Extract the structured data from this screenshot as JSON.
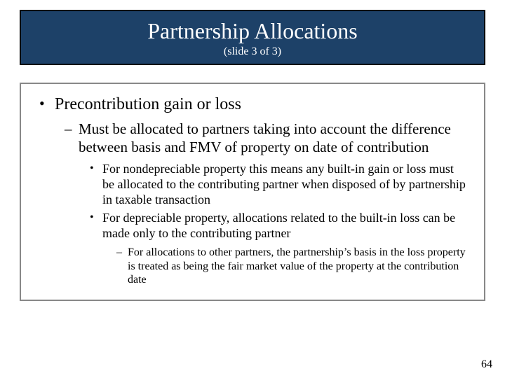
{
  "colors": {
    "title_bg": "#1d4168",
    "title_text": "#ffffff",
    "body_text": "#000000",
    "body_border": "#888888",
    "page_bg": "#ffffff"
  },
  "title": {
    "main": "Partnership Allocations",
    "sub": "(slide 3 of 3)"
  },
  "bullets": {
    "l1": "Precontribution gain or loss",
    "l2": "Must be allocated to partners taking into account the difference between basis and FMV of property on date of contribution",
    "l3a": "For nondepreciable property this means any built-in gain or loss must be allocated to the contributing partner when disposed of by partnership in taxable transaction",
    "l3b": "For depreciable property, allocations related to the built-in loss can be made only to the contributing partner",
    "l4": "For allocations to other partners, the partnership’s basis in the loss property is treated as being the fair market value of the property at the contribution date"
  },
  "page_number": "64"
}
